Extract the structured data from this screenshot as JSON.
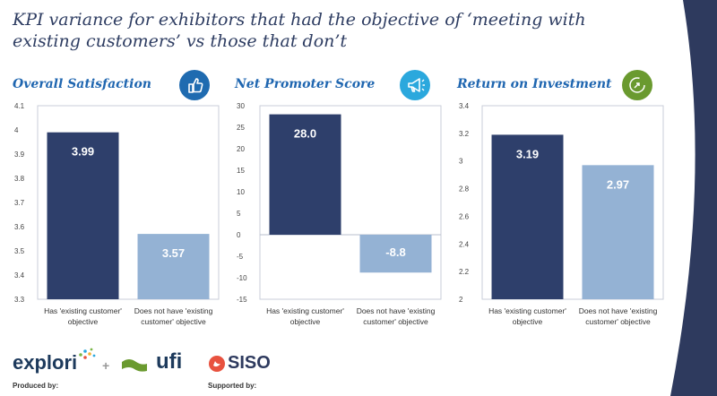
{
  "title": "KPI variance for exhibitors that had the objective of ‘meeting with existing customers’ vs those that don’t",
  "colors": {
    "dark": "#2e3f6b",
    "light": "#94b2d4",
    "heading": "#1f66b0",
    "icon_blue": "#1f6bb0",
    "icon_cyan": "#2ba8dd",
    "icon_green": "#6a9a2f"
  },
  "panels": [
    {
      "heading": "Overall Satisfaction",
      "icon": "thumbs-up-icon"
    },
    {
      "heading": "Net Promoter Score",
      "icon": "megaphone-icon"
    },
    {
      "heading": "Return on Investment",
      "icon": "return-arrow-icon"
    }
  ],
  "chart_data": [
    {
      "type": "bar",
      "title": "Overall Satisfaction",
      "categories": [
        "Has 'existing customer' objective",
        "Does not have 'existing customer' objective"
      ],
      "values": [
        3.99,
        3.57
      ],
      "value_labels": [
        "3.99",
        "3.57"
      ],
      "ylim": [
        3.3,
        4.1
      ],
      "yticks": [
        "3.3",
        "3.4",
        "3.5",
        "3.6",
        "3.7",
        "3.8",
        "3.9",
        "4",
        "4.1"
      ]
    },
    {
      "type": "bar",
      "title": "Net Promoter Score",
      "categories": [
        "Has 'existing customer' objective",
        "Does not have 'existing customer' objective"
      ],
      "values": [
        28.0,
        -8.8
      ],
      "value_labels": [
        "28.0",
        "-8.8"
      ],
      "ylim": [
        -15,
        30
      ],
      "yticks": [
        "-15",
        "-10",
        "-5",
        "0",
        "5",
        "10",
        "15",
        "20",
        "25",
        "30"
      ]
    },
    {
      "type": "bar",
      "title": "Return on Investment",
      "categories": [
        "Has 'existing customer' objective",
        "Does not have 'existing customer' objective"
      ],
      "values": [
        3.19,
        2.97
      ],
      "value_labels": [
        "3.19",
        "2.97"
      ],
      "ylim": [
        2,
        3.4
      ],
      "yticks": [
        "2",
        "2.2",
        "2.4",
        "2.6",
        "2.8",
        "3",
        "3.2",
        "3.4"
      ]
    }
  ],
  "footer": {
    "produced_by": "Produced by:",
    "supported_by": "Supported by:",
    "explori": "explori",
    "plus": "+",
    "ufi": "ufi",
    "siso": "SISO"
  }
}
